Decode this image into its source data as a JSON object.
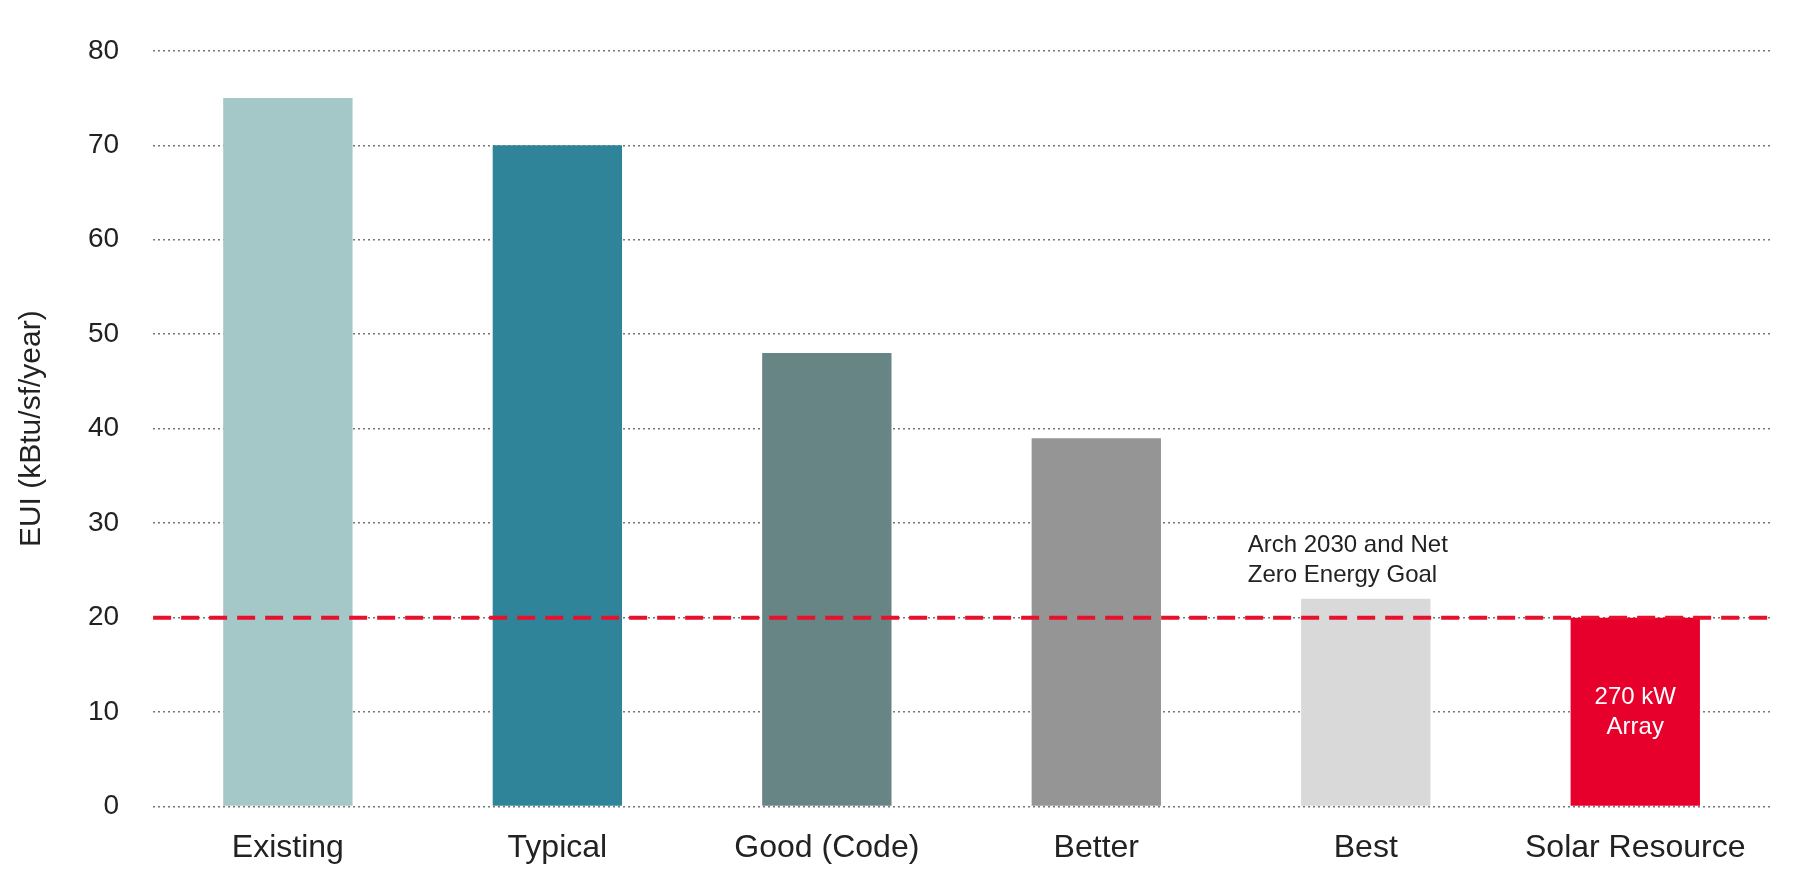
{
  "chart_data": {
    "type": "bar",
    "ylabel": "EUI (kBtu/sf/year)",
    "categories": [
      "Existing",
      "Typical",
      "Good (Code)",
      "Better",
      "Best",
      "Solar Resource"
    ],
    "values": [
      75,
      70,
      48,
      39,
      22,
      20
    ],
    "colors": [
      "#a3c8c7",
      "#2f8499",
      "#688585",
      "#959595",
      "#d9d9d9",
      "#e8002d"
    ],
    "ylim": [
      0,
      80
    ],
    "yticks": [
      0,
      10,
      20,
      30,
      40,
      50,
      60,
      70,
      80
    ],
    "grid": "y",
    "ref_lines": [
      {
        "axis": "y",
        "value": 20,
        "label": "Arch 2030 and Net\nZero Energy Goal",
        "color": "#e8112d",
        "line_style": "dashed"
      }
    ],
    "annotations": [
      "270 kW\nArray"
    ]
  }
}
